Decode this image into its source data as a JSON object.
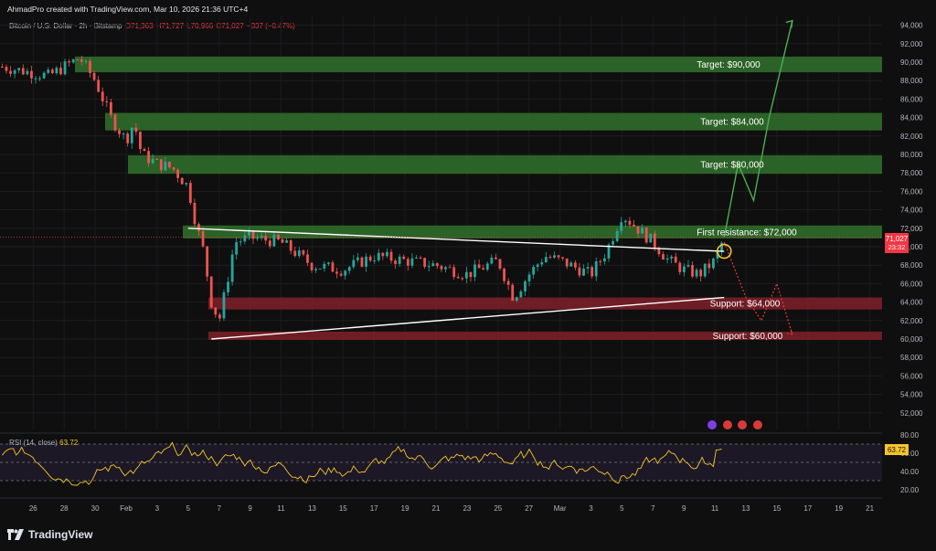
{
  "header": {
    "credit": "AhmadPro created with TradingView.com, Mar 10, 2026 21:36 UTC+4",
    "symbol": "Bitcoin / U.S. Dollar · 2h · Bitstamp",
    "open": "O71,363",
    "high": "H71,727",
    "low": "L70,966",
    "close": "C71,027",
    "change": "−337 (−0.47%)"
  },
  "price_tag": {
    "price": "71,027",
    "countdown": "23:32"
  },
  "rsi_panel": {
    "title": "RSI (14, close)",
    "value": "63.72"
  },
  "footer": {
    "brand": "TradingView"
  },
  "colors": {
    "background": "#0f0f0f",
    "target_zone": "#2f6b2a",
    "support_zone": "#7a1f27",
    "projection_up": "#4caf50",
    "projection_down": "#e53935",
    "rsi_line": "#f7c42b",
    "candle_up": "#26a69a",
    "candle_down": "#ef5350"
  },
  "chart_data": {
    "type": "candlestick",
    "symbol": "BTCUSD",
    "timeframe": "2h",
    "ylim": [
      50000,
      95000
    ],
    "y_ticks": [
      "52,000",
      "54,000",
      "56,000",
      "58,000",
      "60,000",
      "62,000",
      "64,000",
      "66,000",
      "68,000",
      "70,000",
      "72,000",
      "74,000",
      "76,000",
      "78,000",
      "80,000",
      "82,000",
      "84,000",
      "86,000",
      "88,000",
      "90,000",
      "92,000",
      "94,000"
    ],
    "x_ticks": [
      "26",
      "28",
      "30",
      "Feb",
      "3",
      "5",
      "7",
      "9",
      "11",
      "13",
      "15",
      "17",
      "19",
      "21",
      "23",
      "25",
      "27",
      "Mar",
      "3",
      "5",
      "7",
      "9",
      "11",
      "13",
      "15",
      "17",
      "19",
      "21"
    ],
    "x_tick_days": [
      -6,
      -4,
      -2,
      0,
      2,
      4,
      6,
      8,
      10,
      12,
      14,
      16,
      18,
      20,
      22,
      24,
      26,
      28,
      30,
      32,
      34,
      36,
      38,
      40,
      42,
      44,
      46,
      48
    ],
    "price_path_days": [
      -8,
      -6.5,
      -5,
      -4,
      -3,
      -2,
      -1,
      0,
      0.5,
      1,
      2,
      3,
      4,
      4.5,
      5,
      5.5,
      6,
      6.5,
      7,
      8,
      10,
      12,
      14,
      16,
      18,
      20,
      22,
      24,
      25,
      26,
      27,
      28,
      30,
      31,
      32,
      33,
      34,
      35,
      36,
      37,
      38,
      38.6
    ],
    "price_path": [
      89500,
      89000,
      88500,
      89500,
      90500,
      88000,
      84000,
      81500,
      83500,
      80000,
      79000,
      78500,
      76500,
      72500,
      69500,
      64000,
      62000,
      66000,
      70500,
      71000,
      70500,
      68000,
      67500,
      69000,
      68500,
      68000,
      67000,
      68500,
      64500,
      67000,
      69000,
      68500,
      67000,
      69500,
      73500,
      72000,
      70500,
      68500,
      67500,
      67000,
      68500,
      71000
    ],
    "zones": [
      {
        "label": "Target: $90,000",
        "kind": "target",
        "low": 88900,
        "high": 90600
      },
      {
        "label": "Target: $84,000",
        "kind": "target",
        "low": 82600,
        "high": 84500
      },
      {
        "label": "Target: $80,000",
        "kind": "target",
        "low": 77900,
        "high": 79900
      },
      {
        "label": "First resistance: $72,000",
        "kind": "resistance",
        "low": 70900,
        "high": 72300
      },
      {
        "label": "Support: $64,000",
        "kind": "support",
        "low": 63200,
        "high": 64500
      },
      {
        "label": "Support: $60,000",
        "kind": "support",
        "low": 59900,
        "high": 60800
      }
    ],
    "trendlines": [
      {
        "name": "descending resistance",
        "from": [
          4,
          72000
        ],
        "to": [
          38.6,
          69500
        ]
      },
      {
        "name": "ascending support",
        "from": [
          5.5,
          60000
        ],
        "to": [
          38.6,
          64500
        ]
      }
    ],
    "projection_up_days": [
      38.6,
      39.5,
      40.5,
      41.5,
      43
    ],
    "projection_up": [
      71000,
      79000,
      75000,
      84000,
      94500
    ],
    "projection_down_days": [
      38.6,
      40,
      41,
      42,
      43
    ],
    "projection_down": [
      70500,
      64500,
      62000,
      66000,
      60500
    ],
    "breakout_marker": {
      "day": 38.6,
      "price": 69500
    },
    "rsi": {
      "ylim": [
        0,
        100
      ],
      "y_ticks": [
        "20.00",
        "40.00",
        "60.00",
        "80.00"
      ],
      "levels": [
        30,
        50,
        70
      ],
      "last": 63.72
    }
  }
}
